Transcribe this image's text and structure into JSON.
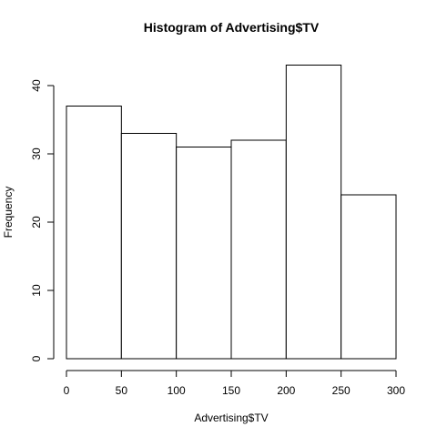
{
  "chart_data": {
    "type": "bar",
    "subtype": "histogram",
    "title": "Histogram of Advertising$TV",
    "xlabel": "Advertising$TV",
    "ylabel": "Frequency",
    "bins": [
      {
        "start": 0,
        "end": 50,
        "count": 37
      },
      {
        "start": 50,
        "end": 100,
        "count": 33
      },
      {
        "start": 100,
        "end": 150,
        "count": 31
      },
      {
        "start": 150,
        "end": 200,
        "count": 32
      },
      {
        "start": 200,
        "end": 250,
        "count": 43
      },
      {
        "start": 250,
        "end": 300,
        "count": 24
      }
    ],
    "xlim": [
      0,
      300
    ],
    "ylim": [
      0,
      40
    ],
    "x_ticks": [
      0,
      50,
      100,
      150,
      200,
      250,
      300
    ],
    "y_ticks": [
      0,
      10,
      20,
      30,
      40
    ],
    "grid": false,
    "bar_fill": "#ffffff",
    "bar_stroke": "#000000"
  }
}
